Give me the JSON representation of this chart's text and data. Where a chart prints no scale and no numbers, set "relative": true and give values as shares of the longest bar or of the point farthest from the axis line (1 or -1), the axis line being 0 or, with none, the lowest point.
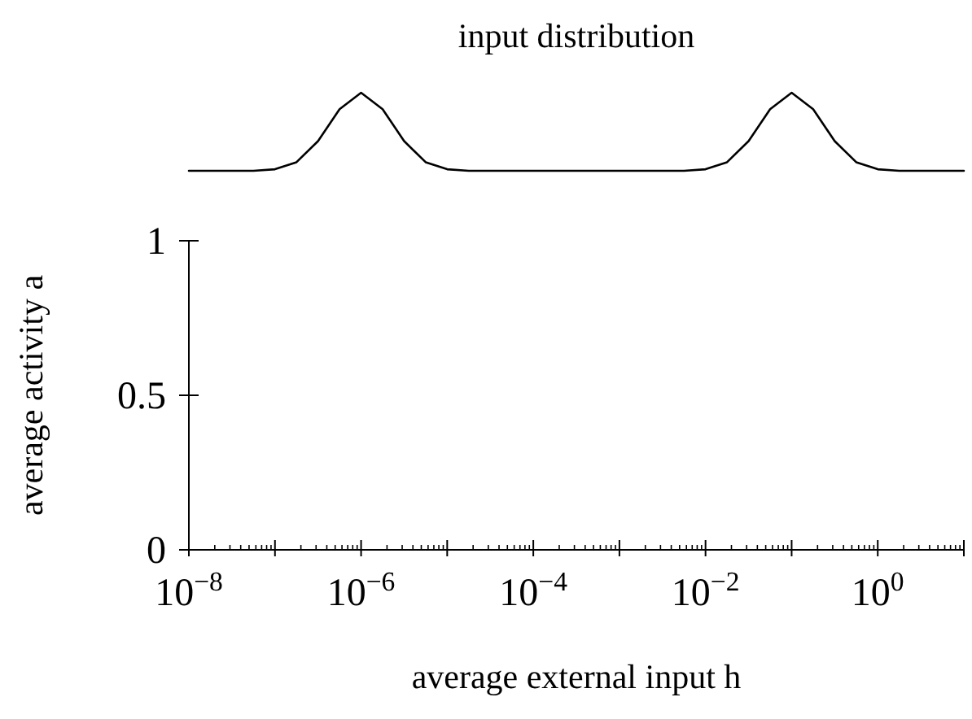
{
  "chart_data": [
    {
      "type": "line",
      "title": "input distribution",
      "relative": true,
      "categories": [
        null,
        null,
        null,
        null,
        null,
        null,
        null,
        null,
        null,
        null,
        null,
        null,
        null,
        null,
        null,
        null,
        null,
        null,
        null,
        null,
        null,
        null,
        null,
        null,
        null,
        null,
        null,
        null,
        null,
        null,
        null,
        null,
        null,
        null,
        null,
        null,
        null
      ],
      "series": [
        {
          "color": "#000000",
          "values": [
            0,
            0,
            0,
            0,
            0.02,
            0.11,
            0.38,
            0.79,
            1,
            0.79,
            0.38,
            0.11,
            0.02,
            0,
            0,
            0,
            0,
            0,
            0,
            0,
            0,
            0,
            0,
            0,
            0.02,
            0.11,
            0.38,
            0.79,
            1,
            0.79,
            0.38,
            0.11,
            0.02,
            0,
            0,
            0,
            0
          ]
        }
      ]
    },
    {
      "type": "line",
      "xlabel": "average external input h",
      "ylabel": "average activity a",
      "log": "x",
      "xlim": [
        1e-08,
        10
      ],
      "ylim": [
        0,
        1
      ],
      "xticks": [
        {
          "value": 1e-08,
          "label": "10$^{−8}$"
        },
        {
          "value": 1e-07,
          "label": null
        },
        {
          "value": 1e-06,
          "label": "10$^{−6}$"
        },
        {
          "value": 1e-05,
          "label": null
        },
        {
          "value": 0.0001,
          "label": "10$^{−4}$"
        },
        {
          "value": 0.001,
          "label": null
        },
        {
          "value": 0.01,
          "label": "10$^{−2}$"
        },
        {
          "value": 0.1,
          "label": null
        },
        {
          "value": 1,
          "label": "10$^{0}$"
        },
        {
          "value": 10,
          "label": null
        }
      ],
      "yticks": [
        0,
        0.5,
        1
      ]
    }
  ]
}
